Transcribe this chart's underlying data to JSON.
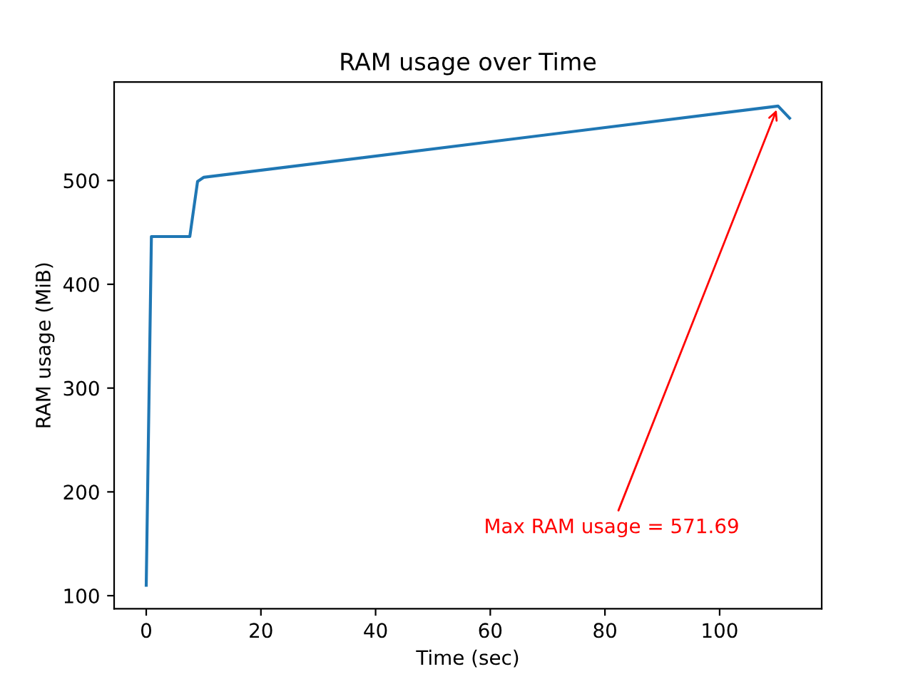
{
  "chart_data": {
    "type": "line",
    "title": "RAM usage over Time",
    "xlabel": "Time (sec)",
    "ylabel": "RAM usage (MiB)",
    "x": [
      0,
      0.9,
      7.6,
      8.95,
      10,
      110.2,
      112.2
    ],
    "series": [
      {
        "color": "#1f77b4",
        "values": [
          110,
          446,
          446,
          499,
          503,
          571.69,
          560
        ]
      }
    ],
    "xlim": [
      -5.6,
      117.8
    ],
    "ylim": [
      87.4,
      594.8
    ],
    "xticks": [
      0,
      20,
      40,
      60,
      80,
      100
    ],
    "yticks": [
      100,
      200,
      300,
      400,
      500
    ],
    "annotations": [
      {
        "text": "Max RAM usage = 571.69",
        "x": 110.2,
        "y": 571.69
      }
    ],
    "grid": false,
    "legend": false
  }
}
